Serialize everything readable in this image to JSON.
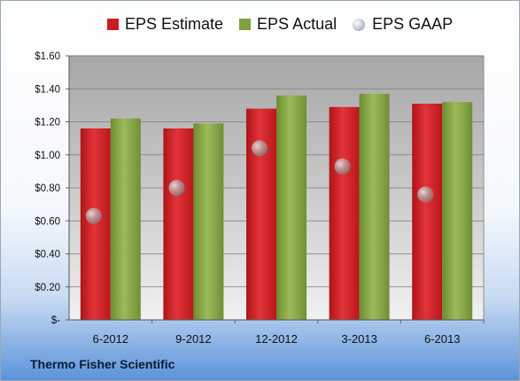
{
  "chart_data": {
    "type": "bar",
    "categories": [
      "6-2012",
      "9-2012",
      "12-2012",
      "3-2013",
      "6-2013"
    ],
    "series": [
      {
        "name": "EPS Estimate",
        "values": [
          1.16,
          1.16,
          1.28,
          1.29,
          1.31
        ],
        "color": "#c81e22",
        "kind": "bar"
      },
      {
        "name": "EPS Actual",
        "values": [
          1.22,
          1.19,
          1.36,
          1.37,
          1.32
        ],
        "color": "#7fa03e",
        "kind": "bar"
      },
      {
        "name": "EPS GAAP",
        "values": [
          0.63,
          0.8,
          1.04,
          0.93,
          0.76
        ],
        "color": "#aab3c0",
        "kind": "point"
      }
    ],
    "ylim": [
      0,
      1.6
    ],
    "yticks": [
      {
        "value": 0,
        "label": "$-"
      },
      {
        "value": 0.2,
        "label": "$0.20"
      },
      {
        "value": 0.4,
        "label": "$0.40"
      },
      {
        "value": 0.6,
        "label": "$0.60"
      },
      {
        "value": 0.8,
        "label": "$0.80"
      },
      {
        "value": 1.0,
        "label": "$1.00"
      },
      {
        "value": 1.2,
        "label": "$1.20"
      },
      {
        "value": 1.4,
        "label": "$1.40"
      },
      {
        "value": 1.6,
        "label": "$1.60"
      }
    ],
    "grid": true,
    "legend_position": "top"
  },
  "footer": {
    "company": "Thermo Fisher Scientific"
  }
}
